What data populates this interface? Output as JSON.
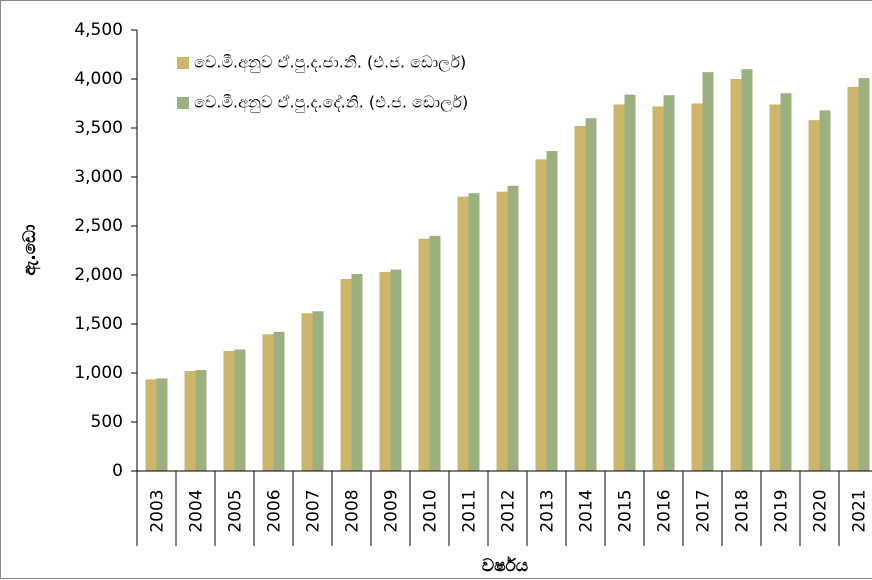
{
  "chart_data": {
    "type": "bar",
    "y_axis_label": "ඇ.ඩො",
    "x_axis_label": "වර්ෂය",
    "categories": [
      "2003",
      "2004",
      "2005",
      "2006",
      "2007",
      "2008",
      "2009",
      "2010",
      "2011",
      "2012",
      "2013",
      "2014",
      "2015",
      "2016",
      "2017",
      "2018",
      "2019",
      "2020",
      "2021"
    ],
    "series": [
      {
        "name": "වෙ.මී.අනුව ඒ.පු.ද.ජා.නි. (එ.ජ. ඩොලර්)",
        "color": "#cdb66c",
        "values": [
          935,
          1020,
          1225,
          1395,
          1610,
          1960,
          2030,
          2370,
          2800,
          2850,
          3180,
          3520,
          3740,
          3720,
          3750,
          4000,
          3740,
          3580,
          3920
        ]
      },
      {
        "name": "වෙ.මී.අනුව ඒ.පු.ද.දේ.නි. (එ.ජ. ඩොලර්)",
        "color": "#9bb07f",
        "values": [
          945,
          1030,
          1240,
          1420,
          1630,
          2010,
          2055,
          2400,
          2835,
          2910,
          3265,
          3600,
          3840,
          3835,
          4070,
          4100,
          3855,
          3680,
          4010
        ]
      }
    ],
    "ylim": [
      0,
      4500
    ],
    "yticks": [
      0,
      500,
      {
        "value": 1000,
        "label": "1,000"
      },
      {
        "value": 1500,
        "label": "1,500"
      },
      {
        "value": 2000,
        "label": "2,000"
      },
      {
        "value": 2500,
        "label": "2,500"
      },
      {
        "value": 3000,
        "label": "3,000"
      },
      {
        "value": 3500,
        "label": "3,500"
      },
      {
        "value": 4000,
        "label": "4,000"
      },
      {
        "value": 4500,
        "label": "4,500"
      }
    ],
    "legend": "top-left"
  }
}
